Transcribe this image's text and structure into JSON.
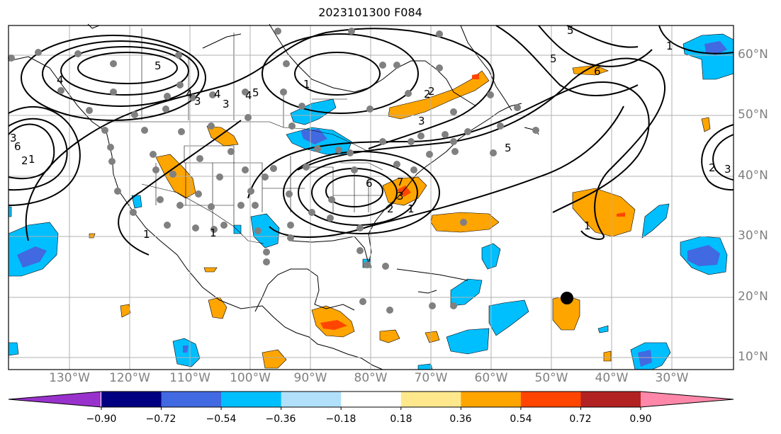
{
  "title": "2023101300 F084",
  "lat_labels": [
    "60°N",
    "50°N",
    "40°N",
    "30°N",
    "20°N",
    "10°N"
  ],
  "lon_labels": [
    "130°W",
    "120°W",
    "110°W",
    "100°W",
    "90°W",
    "80°W",
    "70°W",
    "60°W",
    "50°W",
    "40°W",
    "30°W"
  ],
  "colorbar": {
    "ticks": [
      "−0.90",
      "−0.72",
      "−0.54",
      "−0.36",
      "−0.18",
      "0.18",
      "0.36",
      "0.54",
      "0.72",
      "0.90"
    ],
    "colors": [
      "#9932cc",
      "#000080",
      "#4169e1",
      "#00bfff",
      "#b0e0fa",
      "#ffffff",
      "#ffe88c",
      "#ffa500",
      "#ff4500",
      "#b22222",
      "#ff88aa"
    ]
  },
  "contour_labels": [
    "5",
    "4",
    "3",
    "2",
    "1",
    "6",
    "4",
    "3",
    "5",
    "2",
    "3",
    "4",
    "4",
    "3",
    "2",
    "1",
    "6",
    "7",
    "1",
    "5",
    "2",
    "3",
    "1",
    "5",
    "6",
    "5",
    "1",
    "1",
    "1",
    "2",
    "3"
  ],
  "colors": {
    "orange": "#ffa500",
    "red": "#ff4500",
    "blue": "#00bfff",
    "darkblue": "#4169e1",
    "points": "#808080"
  }
}
